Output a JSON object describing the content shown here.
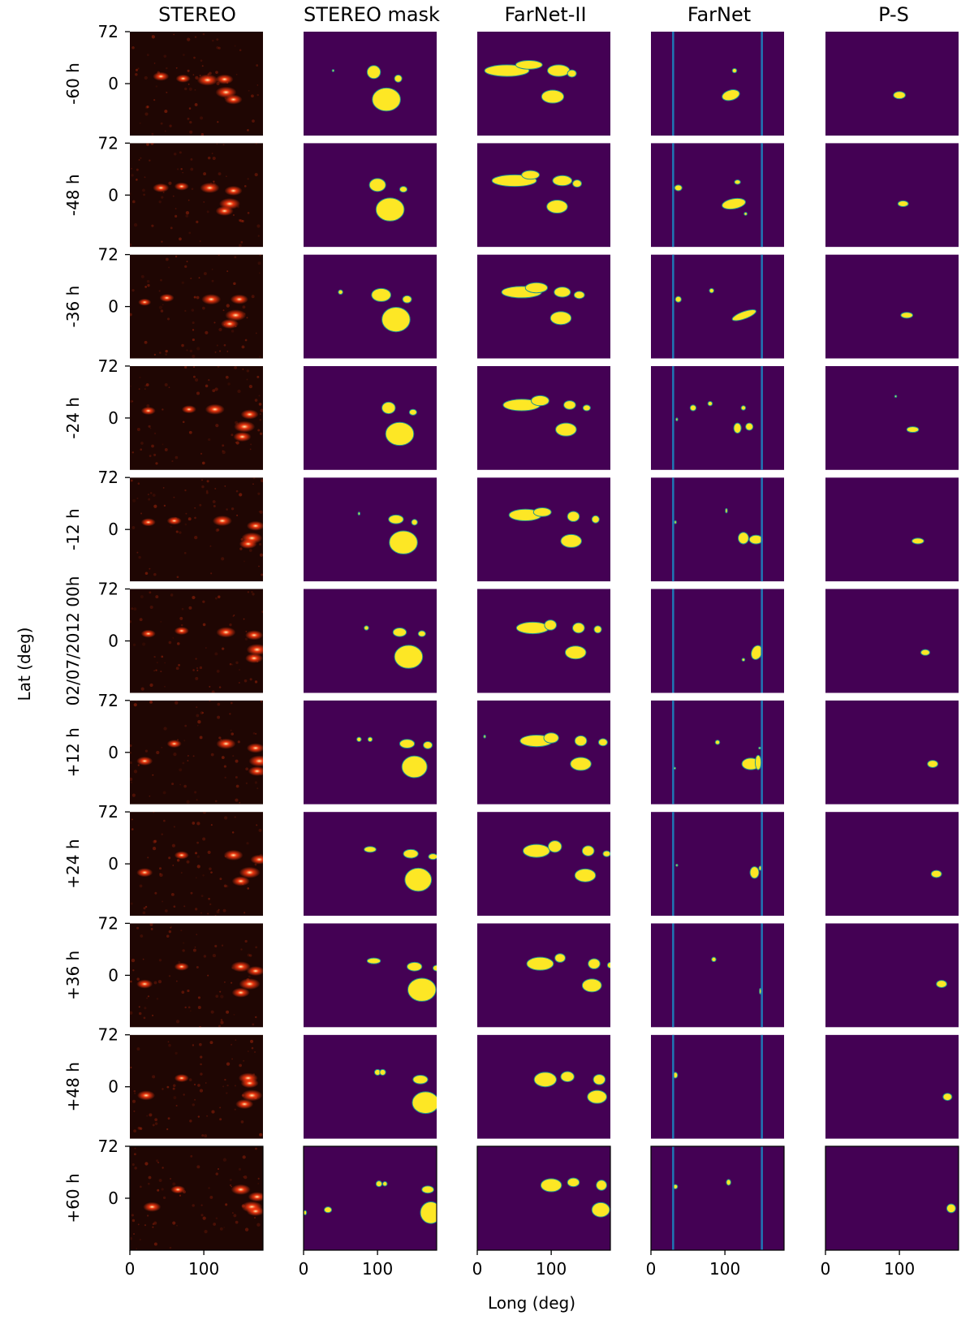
{
  "figure": {
    "column_titles": [
      "STEREO",
      "STEREO mask",
      "FarNet-II",
      "FarNet",
      "P-S"
    ],
    "row_labels": [
      "-60 h",
      "-48 h",
      "-36 h",
      "-24 h",
      "-12 h",
      "02/07/2012 00h",
      "+12 h",
      "+24 h",
      "+36 h",
      "+48 h",
      "+60 h"
    ],
    "y_ticks": [
      "72",
      "0"
    ],
    "x_ticks": [
      "0",
      "100"
    ],
    "xlabel": "Long (deg)",
    "ylabel": "Lat (deg)"
  },
  "chart_data": {
    "type": "heatmap",
    "description": "Grid of 11 time steps x 5 methods; each panel is a map of far-side active region detections (longitude 0-180 deg, latitude -72 to 72 deg).",
    "xlim": [
      0,
      180
    ],
    "ylim": [
      -72,
      72
    ],
    "x_ticks": [
      0,
      100
    ],
    "y_ticks": [
      72,
      0
    ],
    "farnet_vertical_lines_long": [
      30,
      150
    ],
    "colors": {
      "stereo_background": "#1f0603",
      "stereo_spot": "#ff3a10",
      "stereo_core": "#fff0b0",
      "mask_background": "#440154",
      "mask_blob": "#fde725",
      "mask_edge": "#21918c",
      "farnet_line": "#1f77b4"
    },
    "stereo": [
      [
        [
          42,
          10,
          0.7
        ],
        [
          72,
          7,
          0.6
        ],
        [
          105,
          5,
          1.0
        ],
        [
          130,
          -12,
          1.0
        ],
        [
          140,
          -22,
          0.8
        ],
        [
          128,
          6,
          0.8
        ]
      ],
      [
        [
          42,
          10,
          0.7
        ],
        [
          70,
          12,
          0.6
        ],
        [
          108,
          10,
          0.9
        ],
        [
          135,
          -12,
          1.0
        ],
        [
          128,
          -22,
          0.8
        ],
        [
          140,
          6,
          0.8
        ]
      ],
      [
        [
          20,
          6,
          0.5
        ],
        [
          50,
          12,
          0.6
        ],
        [
          110,
          10,
          0.9
        ],
        [
          143,
          -12,
          1.0
        ],
        [
          135,
          -24,
          0.8
        ],
        [
          148,
          10,
          0.8
        ]
      ],
      [
        [
          25,
          10,
          0.6
        ],
        [
          80,
          12,
          0.6
        ],
        [
          115,
          12,
          0.9
        ],
        [
          155,
          -12,
          1.0
        ],
        [
          152,
          -26,
          0.8
        ],
        [
          162,
          5,
          0.8
        ]
      ],
      [
        [
          25,
          10,
          0.6
        ],
        [
          60,
          12,
          0.6
        ],
        [
          125,
          12,
          0.9
        ],
        [
          165,
          -12,
          1.0
        ],
        [
          160,
          -20,
          0.8
        ],
        [
          170,
          5,
          0.8
        ]
      ],
      [
        [
          25,
          10,
          0.6
        ],
        [
          70,
          14,
          0.6
        ],
        [
          130,
          12,
          0.9
        ],
        [
          172,
          -12,
          1.0
        ],
        [
          168,
          -24,
          0.8
        ],
        [
          168,
          8,
          0.8
        ]
      ],
      [
        [
          20,
          -12,
          0.7
        ],
        [
          60,
          12,
          0.6
        ],
        [
          130,
          12,
          0.9
        ],
        [
          175,
          -12,
          1.0
        ],
        [
          172,
          -26,
          0.8
        ],
        [
          170,
          6,
          0.8
        ]
      ],
      [
        [
          20,
          -12,
          0.7
        ],
        [
          70,
          12,
          0.6
        ],
        [
          140,
          12,
          0.9
        ],
        [
          162,
          -12,
          1.0
        ],
        [
          150,
          -24,
          0.8
        ],
        [
          175,
          6,
          0.8
        ]
      ],
      [
        [
          20,
          -12,
          0.7
        ],
        [
          70,
          12,
          0.6
        ],
        [
          150,
          12,
          0.9
        ],
        [
          162,
          -12,
          1.0
        ],
        [
          150,
          -24,
          0.8
        ],
        [
          170,
          6,
          0.8
        ]
      ],
      [
        [
          22,
          -12,
          0.8
        ],
        [
          70,
          12,
          0.6
        ],
        [
          160,
          12,
          0.9
        ],
        [
          165,
          -12,
          1.0
        ],
        [
          155,
          -24,
          0.8
        ],
        [
          162,
          5,
          0.8
        ]
      ],
      [
        [
          30,
          -12,
          0.8
        ],
        [
          65,
          12,
          0.6
        ],
        [
          150,
          12,
          0.9
        ],
        [
          165,
          -12,
          1.0
        ],
        [
          170,
          -18,
          0.8
        ],
        [
          172,
          2,
          0.8
        ]
      ]
    ],
    "stereo_mask": [
      [
        [
          40,
          18,
          1,
          1,
          0
        ],
        [
          95,
          16,
          9,
          9,
          0
        ],
        [
          128,
          7,
          5,
          5,
          0
        ],
        [
          112,
          -22,
          19,
          16,
          0
        ]
      ],
      [
        [
          100,
          14,
          11,
          9,
          0
        ],
        [
          135,
          8,
          5,
          4,
          0
        ],
        [
          117,
          -20,
          19,
          16,
          0
        ]
      ],
      [
        [
          50,
          20,
          3,
          3,
          0
        ],
        [
          105,
          16,
          13,
          9,
          0
        ],
        [
          140,
          10,
          6,
          5,
          0
        ],
        [
          125,
          -18,
          19,
          17,
          0
        ]
      ],
      [
        [
          115,
          14,
          9,
          8,
          0
        ],
        [
          148,
          8,
          5,
          4,
          0
        ],
        [
          130,
          -22,
          19,
          16,
          0
        ]
      ],
      [
        [
          75,
          22,
          1,
          2,
          0
        ],
        [
          125,
          14,
          10,
          6,
          0
        ],
        [
          150,
          10,
          4,
          4,
          0
        ],
        [
          135,
          -18,
          19,
          16,
          0
        ]
      ],
      [
        [
          85,
          18,
          3,
          3,
          0
        ],
        [
          130,
          12,
          9,
          6,
          0
        ],
        [
          160,
          10,
          5,
          4,
          0
        ],
        [
          142,
          -22,
          19,
          16,
          0
        ]
      ],
      [
        [
          75,
          18,
          3,
          3,
          0
        ],
        [
          90,
          18,
          3,
          3,
          0
        ],
        [
          140,
          12,
          10,
          6,
          0
        ],
        [
          168,
          10,
          6,
          5,
          0
        ],
        [
          150,
          -20,
          17,
          15,
          0
        ]
      ],
      [
        [
          90,
          20,
          8,
          4,
          0
        ],
        [
          145,
          14,
          10,
          6,
          0
        ],
        [
          175,
          10,
          6,
          4,
          0
        ],
        [
          155,
          -22,
          18,
          16,
          0
        ]
      ],
      [
        [
          95,
          20,
          9,
          4,
          0
        ],
        [
          150,
          12,
          10,
          6,
          0
        ],
        [
          180,
          10,
          5,
          4,
          0
        ],
        [
          160,
          -20,
          19,
          16,
          0
        ]
      ],
      [
        [
          100,
          20,
          4,
          4,
          0
        ],
        [
          107,
          20,
          4,
          4,
          0
        ],
        [
          158,
          10,
          10,
          6,
          0
        ],
        [
          165,
          -22,
          18,
          15,
          0
        ]
      ],
      [
        [
          2,
          -20,
          2,
          3,
          0
        ],
        [
          33,
          -16,
          5,
          4,
          0
        ],
        [
          102,
          20,
          4,
          4,
          0
        ],
        [
          110,
          20,
          3,
          3,
          0
        ],
        [
          168,
          12,
          8,
          5,
          0
        ],
        [
          172,
          -20,
          14,
          15,
          0
        ]
      ]
    ],
    "farnet_ii": [
      [
        [
          40,
          18,
          30,
          8,
          0
        ],
        [
          70,
          26,
          18,
          6,
          0
        ],
        [
          110,
          18,
          15,
          8,
          0
        ],
        [
          128,
          14,
          6,
          5,
          0
        ],
        [
          102,
          -18,
          15,
          9,
          0
        ]
      ],
      [
        [
          50,
          20,
          30,
          8,
          0
        ],
        [
          72,
          28,
          12,
          6,
          0
        ],
        [
          115,
          20,
          13,
          7,
          0
        ],
        [
          135,
          16,
          6,
          5,
          0
        ],
        [
          108,
          -16,
          14,
          9,
          0
        ]
      ],
      [
        [
          60,
          20,
          27,
          8,
          0
        ],
        [
          80,
          26,
          15,
          7,
          0
        ],
        [
          115,
          20,
          11,
          7,
          0
        ],
        [
          138,
          16,
          7,
          5,
          0
        ],
        [
          113,
          -16,
          14,
          9,
          0
        ]
      ],
      [
        [
          60,
          18,
          25,
          8,
          0
        ],
        [
          85,
          24,
          12,
          7,
          0
        ],
        [
          125,
          18,
          8,
          6,
          0
        ],
        [
          148,
          14,
          5,
          4,
          0
        ],
        [
          120,
          -16,
          14,
          9,
          0
        ]
      ],
      [
        [
          65,
          20,
          22,
          8,
          0
        ],
        [
          88,
          24,
          12,
          6,
          0
        ],
        [
          130,
          18,
          8,
          7,
          0
        ],
        [
          160,
          14,
          5,
          5,
          0
        ],
        [
          127,
          -16,
          14,
          9,
          0
        ]
      ],
      [
        [
          75,
          18,
          22,
          8,
          0
        ],
        [
          99,
          22,
          8,
          7,
          0
        ],
        [
          137,
          18,
          8,
          7,
          0
        ],
        [
          163,
          16,
          5,
          5,
          0
        ],
        [
          133,
          -16,
          14,
          9,
          0
        ]
      ],
      [
        [
          10,
          22,
          1,
          2,
          0
        ],
        [
          80,
          16,
          22,
          8,
          0
        ],
        [
          100,
          20,
          10,
          7,
          0
        ],
        [
          140,
          16,
          8,
          7,
          0
        ],
        [
          170,
          14,
          6,
          5,
          0
        ],
        [
          140,
          -16,
          14,
          9,
          0
        ]
      ],
      [
        [
          80,
          18,
          18,
          9,
          0
        ],
        [
          105,
          24,
          9,
          8,
          0
        ],
        [
          150,
          18,
          8,
          7,
          0
        ],
        [
          175,
          14,
          5,
          4,
          0
        ],
        [
          146,
          -16,
          14,
          9,
          0
        ]
      ],
      [
        [
          85,
          16,
          18,
          9,
          0
        ],
        [
          112,
          24,
          7,
          6,
          0
        ],
        [
          158,
          16,
          8,
          7,
          0
        ],
        [
          180,
          14,
          4,
          4,
          0
        ],
        [
          155,
          -14,
          13,
          9,
          0
        ]
      ],
      [
        [
          92,
          10,
          15,
          10,
          0
        ],
        [
          122,
          14,
          9,
          7,
          0
        ],
        [
          165,
          10,
          8,
          7,
          0
        ],
        [
          162,
          -14,
          13,
          9,
          0
        ]
      ],
      [
        [
          100,
          18,
          14,
          9,
          0
        ],
        [
          130,
          22,
          8,
          6,
          0
        ],
        [
          168,
          18,
          7,
          7,
          0
        ],
        [
          167,
          -16,
          12,
          10,
          0
        ]
      ]
    ],
    "farnet": [
      [
        [
          113,
          18,
          3,
          3,
          0
        ],
        [
          108,
          -16,
          12,
          7,
          -15
        ]
      ],
      [
        [
          37,
          10,
          5,
          4,
          0
        ],
        [
          117,
          18,
          4,
          3,
          0
        ],
        [
          112,
          -12,
          16,
          7,
          -10
        ],
        [
          128,
          -26,
          2,
          2,
          0
        ]
      ],
      [
        [
          37,
          10,
          4,
          4,
          0
        ],
        [
          82,
          22,
          3,
          3,
          0
        ],
        [
          126,
          -12,
          17,
          5,
          -20
        ]
      ],
      [
        [
          35,
          -2,
          1,
          2,
          0
        ],
        [
          57,
          14,
          4,
          4,
          0
        ],
        [
          80,
          20,
          3,
          3,
          0
        ],
        [
          125,
          14,
          3,
          3,
          0
        ],
        [
          117,
          -14,
          5,
          7,
          0
        ],
        [
          133,
          -12,
          5,
          5,
          0
        ]
      ],
      [
        [
          33,
          10,
          1,
          2,
          0
        ],
        [
          102,
          26,
          1,
          3,
          0
        ],
        [
          125,
          -12,
          7,
          8,
          0
        ],
        [
          142,
          -14,
          9,
          6,
          0
        ]
      ],
      [
        [
          125,
          -26,
          2,
          2,
          0
        ],
        [
          143,
          -16,
          7,
          10,
          20
        ]
      ],
      [
        [
          32,
          -22,
          1,
          1,
          0
        ],
        [
          90,
          14,
          3,
          3,
          0
        ],
        [
          147,
          6,
          1,
          1,
          0
        ],
        [
          135,
          -16,
          12,
          8,
          0
        ],
        [
          145,
          -14,
          4,
          10,
          0
        ]
      ],
      [
        [
          35,
          -2,
          1,
          1,
          0
        ],
        [
          140,
          -12,
          6,
          8,
          0
        ],
        [
          148,
          -6,
          2,
          3,
          0
        ]
      ],
      [
        [
          85,
          22,
          3,
          3,
          0
        ],
        [
          148,
          -22,
          1,
          4,
          0
        ]
      ],
      [
        [
          33,
          16,
          3,
          4,
          0
        ]
      ],
      [
        [
          33,
          16,
          3,
          3,
          0
        ],
        [
          105,
          22,
          3,
          4,
          0
        ]
      ]
    ],
    "ps": [
      [
        [
          100,
          -16,
          8,
          5,
          0
        ]
      ],
      [
        [
          105,
          -12,
          7,
          4,
          0
        ]
      ],
      [
        [
          110,
          -12,
          8,
          4,
          0
        ]
      ],
      [
        [
          95,
          30,
          1,
          1,
          0
        ],
        [
          118,
          -16,
          8,
          4,
          0
        ]
      ],
      [
        [
          125,
          -16,
          8,
          4,
          0
        ]
      ],
      [
        [
          135,
          -16,
          6,
          4,
          0
        ]
      ],
      [
        [
          145,
          -16,
          7,
          5,
          0
        ]
      ],
      [
        [
          150,
          -14,
          7,
          5,
          0
        ]
      ],
      [
        [
          157,
          -12,
          7,
          5,
          0
        ]
      ],
      [
        [
          165,
          -14,
          6,
          5,
          0
        ]
      ],
      [
        [
          170,
          -14,
          6,
          6,
          0
        ]
      ]
    ]
  }
}
